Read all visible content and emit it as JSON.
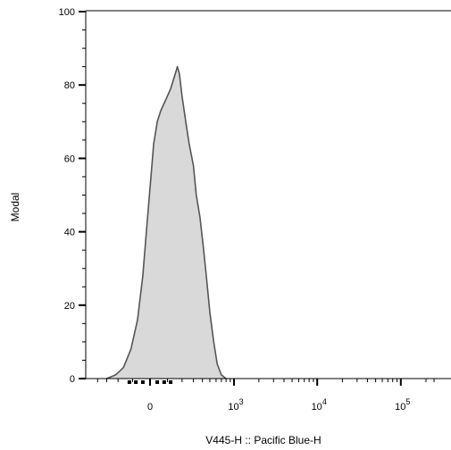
{
  "chart_data": {
    "type": "area",
    "title": "",
    "xlabel": "V445-H :: Pacific Blue-H",
    "ylabel": "Modal",
    "x_scale": "biexponential",
    "ylim": [
      0,
      100
    ],
    "y_ticks": [
      {
        "value": 0,
        "label": "0"
      },
      {
        "value": 20,
        "label": "20"
      },
      {
        "value": 40,
        "label": "40"
      },
      {
        "value": 60,
        "label": "60"
      },
      {
        "value": 80,
        "label": "80"
      },
      {
        "value": 100,
        "label": "100"
      }
    ],
    "x_ticks": [
      {
        "value": "0",
        "base": "0",
        "exp": ""
      },
      {
        "value": "1000",
        "base": "10",
        "exp": "3"
      },
      {
        "value": "10000",
        "base": "10",
        "exp": "4"
      },
      {
        "value": "100000",
        "base": "10",
        "exp": "5"
      }
    ],
    "series": [
      {
        "fill": "#d9d9d9",
        "stroke": "#555555",
        "points": [
          [
            -300,
            0
          ],
          [
            -220,
            1
          ],
          [
            -160,
            3
          ],
          [
            -110,
            8
          ],
          [
            -70,
            16
          ],
          [
            -40,
            28
          ],
          [
            -20,
            40
          ],
          [
            0,
            52
          ],
          [
            20,
            64
          ],
          [
            40,
            70
          ],
          [
            60,
            73
          ],
          [
            90,
            76
          ],
          [
            120,
            79
          ],
          [
            150,
            83
          ],
          [
            165,
            85
          ],
          [
            180,
            83
          ],
          [
            200,
            77
          ],
          [
            230,
            70
          ],
          [
            260,
            64
          ],
          [
            300,
            58
          ],
          [
            330,
            50
          ],
          [
            370,
            44
          ],
          [
            410,
            36
          ],
          [
            450,
            28
          ],
          [
            500,
            18
          ],
          [
            560,
            10
          ],
          [
            620,
            4
          ],
          [
            700,
            1
          ],
          [
            800,
            0
          ]
        ]
      }
    ]
  }
}
